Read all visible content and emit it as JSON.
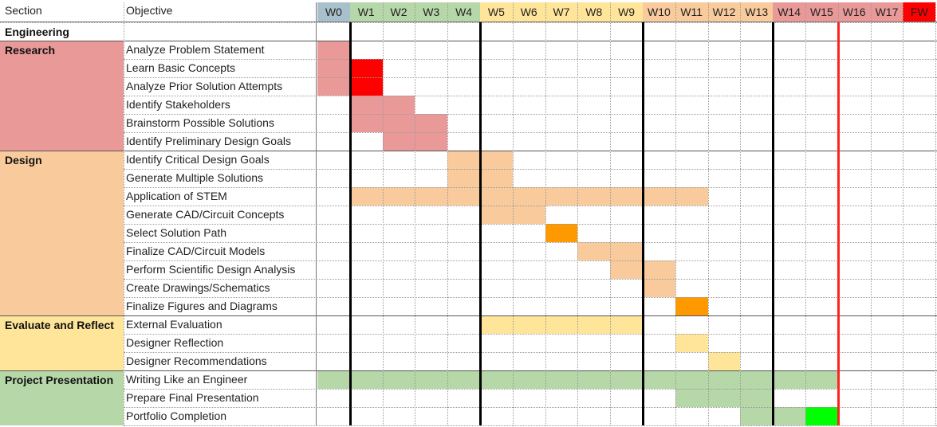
{
  "header": {
    "section_label": "Section",
    "objective_label": "Objective",
    "weeks": [
      {
        "label": "W0",
        "color": "#a8c0cc"
      },
      {
        "label": "W1",
        "color": "#b6d7a8"
      },
      {
        "label": "W2",
        "color": "#b6d7a8"
      },
      {
        "label": "W3",
        "color": "#b6d7a8"
      },
      {
        "label": "W4",
        "color": "#b6d7a8"
      },
      {
        "label": "W5",
        "color": "#ffe599"
      },
      {
        "label": "W6",
        "color": "#ffe599"
      },
      {
        "label": "W7",
        "color": "#ffe599"
      },
      {
        "label": "W8",
        "color": "#ffe599"
      },
      {
        "label": "W9",
        "color": "#ffe599"
      },
      {
        "label": "W10",
        "color": "#f9cb9c"
      },
      {
        "label": "W11",
        "color": "#f9cb9c"
      },
      {
        "label": "W12",
        "color": "#f9cb9c"
      },
      {
        "label": "W13",
        "color": "#f9cb9c"
      },
      {
        "label": "W14",
        "color": "#ea9999"
      },
      {
        "label": "W15",
        "color": "#ea9999"
      },
      {
        "label": "W16",
        "color": "#ea9999"
      },
      {
        "label": "W17",
        "color": "#ea9999"
      },
      {
        "label": "FW",
        "color": "#ff0000"
      }
    ]
  },
  "sections": [
    {
      "name": "Engineering",
      "color": "#ffffff",
      "title_only": true,
      "tasks": []
    },
    {
      "name": "Research",
      "color": "#ea9999",
      "tasks": [
        {
          "label": "Analyze Problem Statement",
          "bars": [
            {
              "start": 0,
              "end": 0,
              "color": "#ea9999"
            }
          ]
        },
        {
          "label": "Learn Basic Concepts",
          "bars": [
            {
              "start": 0,
              "end": 0,
              "color": "#ea9999"
            },
            {
              "start": 1,
              "end": 1,
              "color": "#ff0000"
            }
          ]
        },
        {
          "label": "Analyze Prior Solution Attempts",
          "bars": [
            {
              "start": 0,
              "end": 0,
              "color": "#ea9999"
            },
            {
              "start": 1,
              "end": 1,
              "color": "#ff0000"
            }
          ]
        },
        {
          "label": "Identify Stakeholders",
          "bars": [
            {
              "start": 1,
              "end": 2,
              "color": "#ea9999"
            }
          ]
        },
        {
          "label": "Brainstorm Possible Solutions",
          "bars": [
            {
              "start": 1,
              "end": 3,
              "color": "#ea9999"
            }
          ]
        },
        {
          "label": "Identify Preliminary Design Goals",
          "bars": [
            {
              "start": 2,
              "end": 3,
              "color": "#ea9999"
            }
          ]
        }
      ]
    },
    {
      "name": "Design",
      "color": "#f9cb9c",
      "tasks": [
        {
          "label": "Identify Critical Design Goals",
          "bars": [
            {
              "start": 4,
              "end": 5,
              "color": "#f9cb9c"
            }
          ]
        },
        {
          "label": "Generate Multiple Solutions",
          "bars": [
            {
              "start": 4,
              "end": 5,
              "color": "#f9cb9c"
            }
          ]
        },
        {
          "label": "Application of STEM",
          "bars": [
            {
              "start": 1,
              "end": 11,
              "color": "#f9cb9c"
            }
          ]
        },
        {
          "label": "Generate CAD/Circuit Concepts",
          "bars": [
            {
              "start": 5,
              "end": 6,
              "color": "#f9cb9c"
            }
          ]
        },
        {
          "label": "Select Solution Path",
          "bars": [
            {
              "start": 7,
              "end": 7,
              "color": "#ff9900"
            }
          ]
        },
        {
          "label": "Finalize CAD/Circuit Models",
          "bars": [
            {
              "start": 8,
              "end": 9,
              "color": "#f9cb9c"
            }
          ]
        },
        {
          "label": "Perform Scientific Design Analysis",
          "bars": [
            {
              "start": 9,
              "end": 10,
              "color": "#f9cb9c"
            }
          ]
        },
        {
          "label": "Create Drawings/Schematics",
          "bars": [
            {
              "start": 10,
              "end": 10,
              "color": "#f9cb9c"
            }
          ]
        },
        {
          "label": "Finalize Figures and Diagrams",
          "bars": [
            {
              "start": 11,
              "end": 11,
              "color": "#ff9900"
            }
          ]
        }
      ]
    },
    {
      "name": "Evaluate and Reflect",
      "color": "#ffe599",
      "tasks": [
        {
          "label": "External Evaluation",
          "bars": [
            {
              "start": 5,
              "end": 9,
              "color": "#ffe599"
            }
          ]
        },
        {
          "label": "Designer Reflection",
          "bars": [
            {
              "start": 11,
              "end": 11,
              "color": "#ffe599"
            }
          ]
        },
        {
          "label": "Designer Recommendations",
          "bars": [
            {
              "start": 12,
              "end": 12,
              "color": "#ffe599"
            }
          ]
        }
      ]
    },
    {
      "name": "Project Presentation",
      "color": "#b6d7a8",
      "tasks": [
        {
          "label": "Writing Like an Engineer",
          "bars": [
            {
              "start": 0,
              "end": 15,
              "color": "#b6d7a8"
            }
          ]
        },
        {
          "label": "Prepare Final Presentation",
          "bars": [
            {
              "start": 11,
              "end": 13,
              "color": "#b6d7a8"
            }
          ]
        },
        {
          "label": "Portfolio Completion",
          "bars": [
            {
              "start": 13,
              "end": 14,
              "color": "#b6d7a8"
            },
            {
              "start": 15,
              "end": 15,
              "color": "#00ff00"
            }
          ]
        }
      ]
    }
  ],
  "milestone_line_color": "#ff2222"
}
